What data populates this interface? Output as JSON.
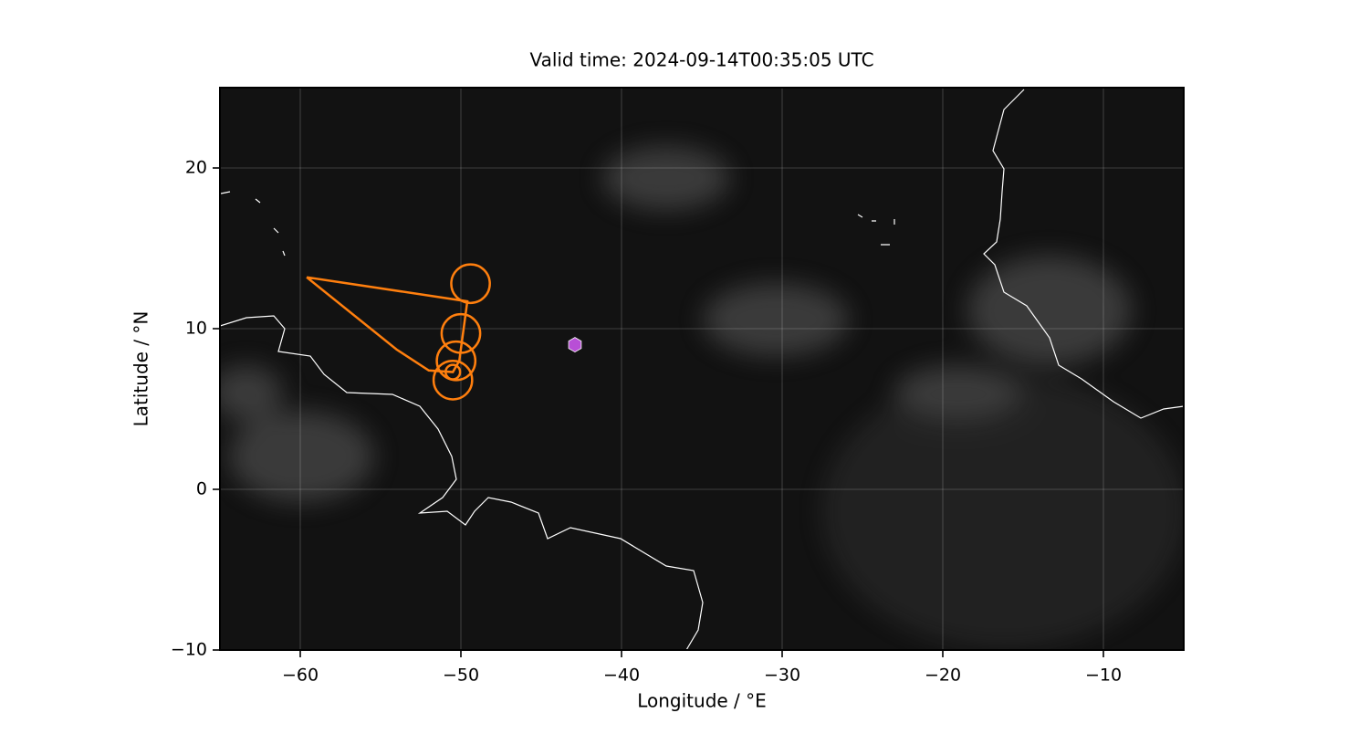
{
  "chart_data": {
    "type": "map",
    "title": "Valid time: 2024-09-14T00:35:05 UTC",
    "xlabel": "Longitude / °E",
    "ylabel": "Latitude / °N",
    "xlim": [
      -65,
      -5
    ],
    "ylim": [
      -10,
      25
    ],
    "xticks": [
      {
        "value": -60,
        "label": "−60"
      },
      {
        "value": -50,
        "label": "−50"
      },
      {
        "value": -40,
        "label": "−40"
      },
      {
        "value": -30,
        "label": "−30"
      },
      {
        "value": -20,
        "label": "−20"
      },
      {
        "value": -10,
        "label": "−10"
      }
    ],
    "yticks": [
      {
        "value": -10,
        "label": "−10"
      },
      0,
      10,
      20
    ],
    "grid": true,
    "track": {
      "color": "#ff7f0e",
      "x": [
        -59.6,
        -49.6,
        -50.1,
        -50.5,
        -52.0,
        -54.0,
        -59.6
      ],
      "y": [
        13.2,
        11.7,
        8.0,
        7.3,
        7.4,
        8.7,
        13.2
      ]
    },
    "circles": {
      "color": "#ff7f0e",
      "x": [
        -49.4,
        -50.0,
        -50.3,
        -50.5,
        -50.5
      ],
      "y": [
        12.8,
        9.7,
        8.0,
        6.8,
        7.3
      ],
      "sizes": [
        1.2,
        1.2,
        1.2,
        1.2,
        0.45
      ]
    },
    "marker": {
      "color": "#b84fd6",
      "x": -42.9,
      "y": 9.0
    }
  }
}
